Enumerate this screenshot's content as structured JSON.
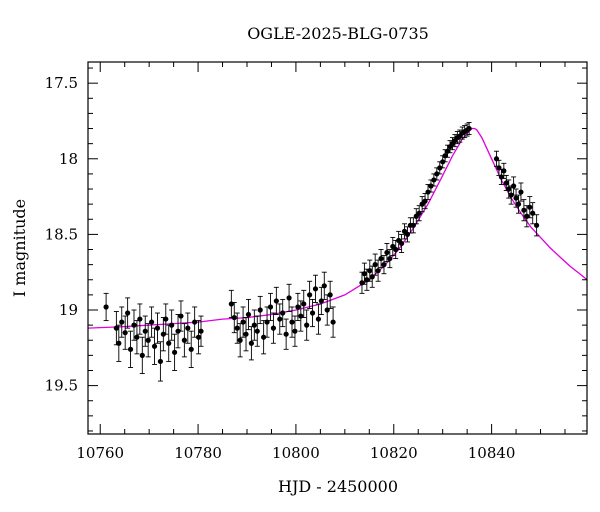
{
  "chart_data": {
    "type": "scatter",
    "title": "OGLE-2025-BLG-0735",
    "xlabel": "HJD - 2450000",
    "ylabel": "I magnitude",
    "xlim": [
      10757.5,
      10859.5
    ],
    "ylim": [
      19.82,
      17.36
    ],
    "y_inverted": true,
    "x_ticks": [
      10760,
      10780,
      10800,
      10820,
      10840
    ],
    "x_tick_labels": [
      "10760",
      "10780",
      "10800",
      "10820",
      "10840"
    ],
    "y_ticks": [
      17.5,
      18,
      18.5,
      19,
      19.5
    ],
    "y_tick_labels": [
      "17.5",
      "18",
      "18.5",
      "19",
      "19.5"
    ],
    "grid": false,
    "colors": {
      "points": "#000000",
      "model": "#e000e0"
    },
    "series": [
      {
        "kind": "points_with_errorbars",
        "x": [
          10761.2,
          10763.3,
          10763.8,
          10764.4,
          10765.1,
          10765.6,
          10766.2,
          10766.9,
          10767.5,
          10768.1,
          10768.6,
          10769.2,
          10769.8,
          10770.5,
          10771.1,
          10771.7,
          10772.3,
          10772.9,
          10773.4,
          10774.0,
          10774.6,
          10775.2,
          10775.9,
          10776.5,
          10777.2,
          10777.9,
          10778.6,
          10779.3,
          10780.1,
          10780.6,
          10786.8,
          10787.4,
          10788.0,
          10788.6,
          10789.2,
          10789.8,
          10790.3,
          10790.9,
          10791.5,
          10792.1,
          10792.7,
          10793.4,
          10794.1,
          10794.8,
          10795.4,
          10796.0,
          10796.7,
          10797.3,
          10798.0,
          10798.6,
          10799.2,
          10799.8,
          10800.4,
          10801.0,
          10801.6,
          10802.2,
          10802.8,
          10803.4,
          10804.0,
          10804.6,
          10805.2,
          10805.8,
          10806.4,
          10807.0,
          10807.6,
          10813.5,
          10814.0,
          10814.5,
          10815.1,
          10815.6,
          10816.2,
          10816.8,
          10817.4,
          10818.0,
          10818.6,
          10819.2,
          10819.8,
          10820.4,
          10821.0,
          10821.6,
          10822.2,
          10822.8,
          10823.4,
          10824.0,
          10824.6,
          10825.2,
          10825.8,
          10826.4,
          10827.0,
          10827.6,
          10828.2,
          10828.8,
          10829.4,
          10830.0,
          10830.5,
          10831.0,
          10831.5,
          10832.0,
          10832.5,
          10833.0,
          10833.5,
          10834.0,
          10834.5,
          10835.0,
          10835.4,
          10841.0,
          10841.5,
          10842.0,
          10842.5,
          10843.0,
          10843.5,
          10844.0,
          10844.5,
          10845.0,
          10845.5,
          10846.0,
          10846.6,
          10847.2,
          10847.8,
          10848.4,
          10849.2
        ],
        "y": [
          18.98,
          19.12,
          19.22,
          19.08,
          19.15,
          19.02,
          19.26,
          19.1,
          19.18,
          19.06,
          19.3,
          19.14,
          19.2,
          19.08,
          19.24,
          19.12,
          19.34,
          19.16,
          19.06,
          19.22,
          19.1,
          19.28,
          19.14,
          19.04,
          19.2,
          19.12,
          19.26,
          19.08,
          19.18,
          19.14,
          18.96,
          19.05,
          19.12,
          19.2,
          19.08,
          19.16,
          19.03,
          19.22,
          19.1,
          19.14,
          19.0,
          19.18,
          19.08,
          18.98,
          19.12,
          18.94,
          19.06,
          19.02,
          19.16,
          18.92,
          19.08,
          19.14,
          18.98,
          19.04,
          18.96,
          19.1,
          18.9,
          19.02,
          18.86,
          19.06,
          18.94,
          18.84,
          19.0,
          18.9,
          19.08,
          18.82,
          18.76,
          18.8,
          18.74,
          18.78,
          18.7,
          18.74,
          18.66,
          18.7,
          18.62,
          18.66,
          18.58,
          18.6,
          18.54,
          18.56,
          18.48,
          18.5,
          18.44,
          18.44,
          18.38,
          18.36,
          18.3,
          18.28,
          18.22,
          18.18,
          18.14,
          18.1,
          18.06,
          18.02,
          17.98,
          17.95,
          17.92,
          17.9,
          17.88,
          17.86,
          17.85,
          17.83,
          17.82,
          17.81,
          17.8,
          18.0,
          18.06,
          18.12,
          18.08,
          18.16,
          18.2,
          18.24,
          18.18,
          18.26,
          18.3,
          18.22,
          18.34,
          18.38,
          18.32,
          18.36,
          18.44
        ],
        "yerr": [
          0.09,
          0.11,
          0.12,
          0.1,
          0.11,
          0.1,
          0.12,
          0.1,
          0.11,
          0.1,
          0.12,
          0.1,
          0.11,
          0.1,
          0.12,
          0.1,
          0.13,
          0.11,
          0.1,
          0.12,
          0.1,
          0.12,
          0.11,
          0.1,
          0.11,
          0.1,
          0.12,
          0.1,
          0.11,
          0.1,
          0.09,
          0.1,
          0.1,
          0.11,
          0.1,
          0.11,
          0.1,
          0.11,
          0.1,
          0.1,
          0.09,
          0.11,
          0.1,
          0.09,
          0.1,
          0.09,
          0.1,
          0.09,
          0.1,
          0.09,
          0.1,
          0.1,
          0.09,
          0.1,
          0.09,
          0.1,
          0.09,
          0.09,
          0.09,
          0.1,
          0.09,
          0.09,
          0.1,
          0.09,
          0.1,
          0.07,
          0.07,
          0.07,
          0.07,
          0.07,
          0.07,
          0.07,
          0.06,
          0.06,
          0.06,
          0.06,
          0.06,
          0.06,
          0.06,
          0.06,
          0.05,
          0.05,
          0.05,
          0.05,
          0.05,
          0.05,
          0.05,
          0.05,
          0.05,
          0.04,
          0.04,
          0.04,
          0.04,
          0.04,
          0.04,
          0.04,
          0.04,
          0.04,
          0.04,
          0.04,
          0.04,
          0.04,
          0.04,
          0.04,
          0.04,
          0.05,
          0.05,
          0.05,
          0.05,
          0.05,
          0.06,
          0.06,
          0.06,
          0.06,
          0.06,
          0.06,
          0.07,
          0.07,
          0.07,
          0.07,
          0.07
        ]
      },
      {
        "kind": "model_curve",
        "x": [
          10757.5,
          10765,
          10770,
          10775,
          10780,
          10785,
          10790,
          10795,
          10800,
          10805,
          10810,
          10815,
          10818,
          10821,
          10824,
          10827,
          10830,
          10832,
          10834,
          10835,
          10836,
          10836.5,
          10837,
          10838,
          10839,
          10840,
          10841,
          10842,
          10843,
          10844,
          10845,
          10846,
          10848,
          10850,
          10852,
          10854,
          10856,
          10858,
          10859.5
        ],
        "y": [
          19.12,
          19.11,
          19.1,
          19.09,
          19.08,
          19.06,
          19.05,
          19.03,
          19.0,
          18.96,
          18.9,
          18.8,
          18.71,
          18.6,
          18.46,
          18.3,
          18.11,
          17.98,
          17.87,
          17.83,
          17.8,
          17.8,
          17.81,
          17.86,
          17.93,
          18.0,
          18.07,
          18.14,
          18.2,
          18.26,
          18.31,
          18.36,
          18.45,
          18.52,
          18.59,
          18.65,
          18.71,
          18.76,
          18.8
        ]
      }
    ]
  }
}
